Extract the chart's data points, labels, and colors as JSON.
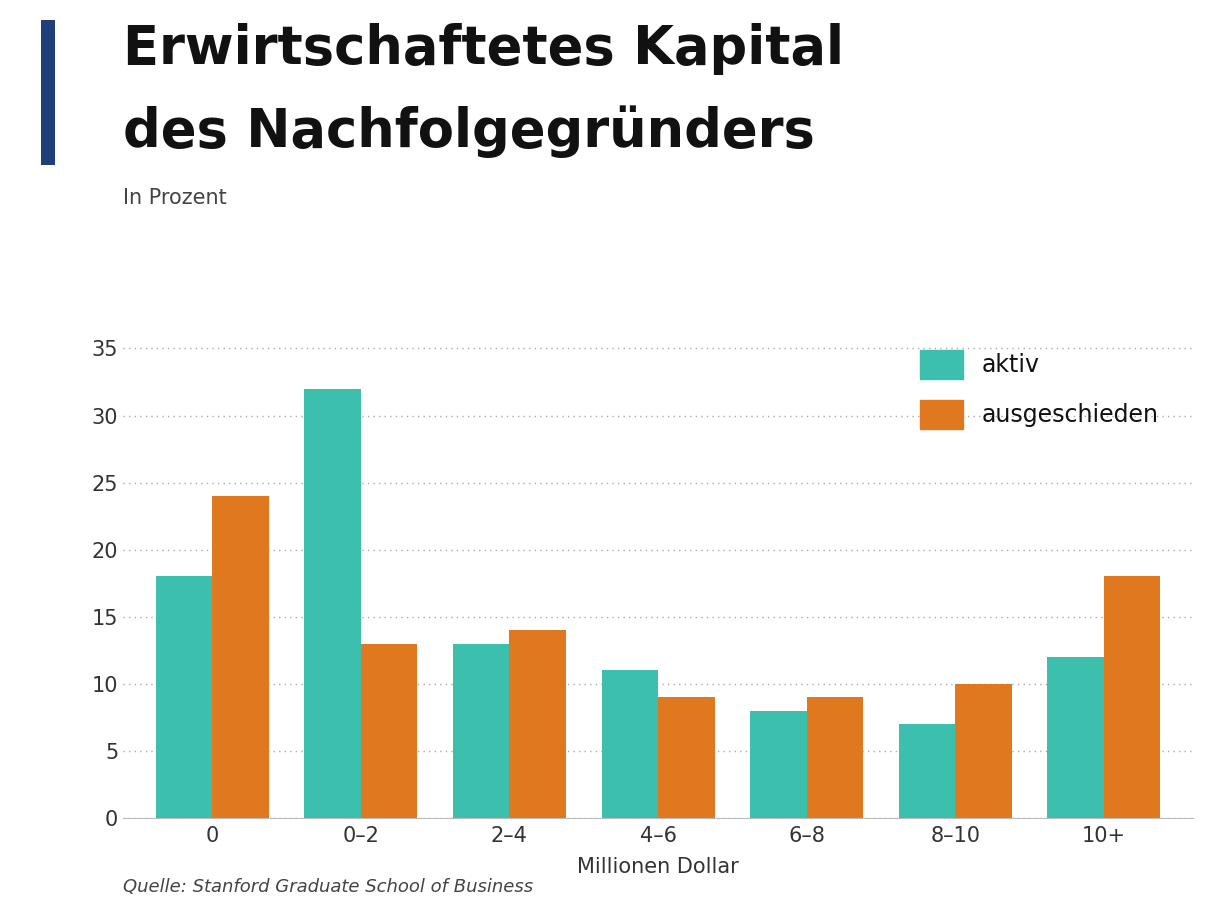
{
  "title_line1": "Erwirtschaftetes Kapital",
  "title_line2": "des Nachfolgegründers",
  "subtitle": "In Prozent",
  "xlabel": "Millionen Dollar",
  "source": "Quelle: Stanford Graduate School of Business",
  "categories": [
    "0",
    "0–2",
    "2–4",
    "4–6",
    "6–8",
    "8–10",
    "10+"
  ],
  "aktiv": [
    18,
    32,
    13,
    11,
    8,
    7,
    12
  ],
  "ausgeschieden": [
    24,
    13,
    14,
    9,
    9,
    10,
    18
  ],
  "color_aktiv": "#3dbfad",
  "color_ausgeschieden": "#e07820",
  "ylim": [
    0,
    37
  ],
  "yticks": [
    0,
    5,
    10,
    15,
    20,
    25,
    30,
    35
  ],
  "background_color": "#ffffff",
  "title_fontsize": 38,
  "subtitle_fontsize": 15,
  "axis_fontsize": 14,
  "legend_fontsize": 17,
  "source_fontsize": 13,
  "bar_width": 0.38,
  "title_color": "#111111",
  "subtitle_color": "#444444",
  "tick_color": "#333333",
  "grid_color": "#aaaaaa",
  "accent_bar_color": "#1e3f7a"
}
